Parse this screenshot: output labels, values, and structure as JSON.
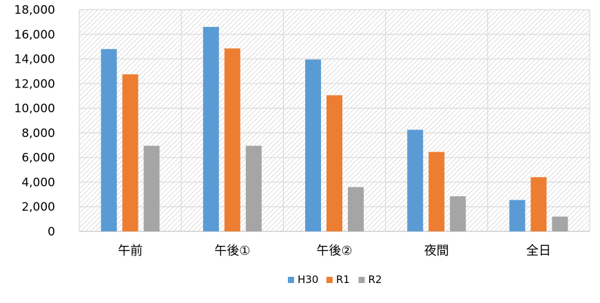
{
  "chart_data": {
    "type": "bar",
    "categories": [
      "午前",
      "午後①",
      "午後②",
      "夜間",
      "全日"
    ],
    "series": [
      {
        "name": "H30",
        "color": "#5b9bd5",
        "values": [
          14800,
          16600,
          13950,
          8250,
          2550
        ]
      },
      {
        "name": "R1",
        "color": "#ed7d31",
        "values": [
          12750,
          14850,
          11050,
          6450,
          4400
        ]
      },
      {
        "name": "R2",
        "color": "#a5a5a5",
        "values": [
          6950,
          6950,
          3600,
          2850,
          1200
        ]
      }
    ],
    "ylim": [
      0,
      18000
    ],
    "yticks": [
      0,
      2000,
      4000,
      6000,
      8000,
      10000,
      12000,
      14000,
      16000,
      18000
    ],
    "ytick_labels": [
      "0",
      "2,000",
      "4,000",
      "6,000",
      "8,000",
      "10,000",
      "12,000",
      "14,000",
      "16,000",
      "18,000"
    ],
    "grid": true,
    "legend": "bottom-center",
    "plot_background": "hatched"
  }
}
